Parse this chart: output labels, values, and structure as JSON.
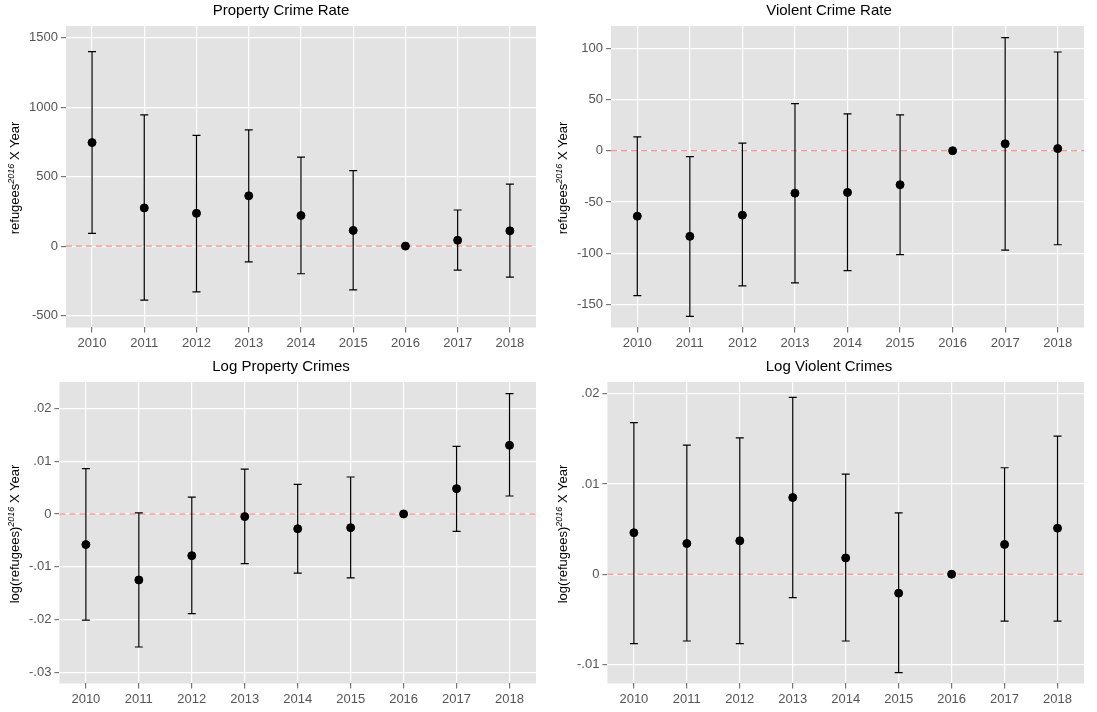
{
  "chart_data": [
    {
      "type": "scatter",
      "title": "Property Crime Rate",
      "ylabel": "refugees$^{2016}$ X Year",
      "categories": [
        "2010",
        "2011",
        "2012",
        "2013",
        "2014",
        "2015",
        "2016",
        "2017",
        "2018"
      ],
      "color": "#000000",
      "marker": "circle",
      "grid": true,
      "values": [
        745,
        275,
        236,
        362,
        220,
        113,
        0,
        42,
        110
      ],
      "errors": [
        [
          92,
          1400
        ],
        [
          -388,
          944
        ],
        [
          -330,
          797
        ],
        [
          -113,
          836
        ],
        [
          -199,
          640
        ],
        [
          -315,
          543
        ],
        null,
        [
          -173,
          260
        ],
        [
          -223,
          446
        ]
      ],
      "ylim": [
        -585,
        1584
      ],
      "yticks": [
        -500,
        0,
        500,
        1000,
        1500
      ],
      "ref_lines": [
        {
          "axis": "y",
          "value": 0,
          "color": "#f8766d",
          "line_style": "dashed"
        }
      ]
    },
    {
      "type": "scatter",
      "title": "Violent Crime Rate",
      "ylabel": "refugees$^{2016}$ X Year",
      "categories": [
        "2010",
        "2011",
        "2012",
        "2013",
        "2014",
        "2015",
        "2016",
        "2017",
        "2018"
      ],
      "color": "#000000",
      "marker": "circle",
      "grid": true,
      "values": [
        -63.9,
        -83.6,
        -62.9,
        -41.4,
        -40.7,
        -33.2,
        0,
        6.8,
        2.1
      ],
      "errors": [
        [
          -141.4,
          13.6
        ],
        [
          -161.8,
          -5.7
        ],
        [
          -132,
          7.5
        ],
        [
          -129,
          46
        ],
        [
          -117,
          36
        ],
        [
          -101.4,
          35
        ],
        null,
        [
          -97.1,
          110.4
        ],
        [
          -91.8,
          96.4
        ]
      ],
      "ylim": [
        -172.5,
        121.8
      ],
      "yticks": [
        -150,
        -100,
        -50,
        0,
        50,
        100
      ],
      "ref_lines": [
        {
          "axis": "y",
          "value": 0,
          "color": "#f8766d",
          "line_style": "dashed"
        }
      ]
    },
    {
      "type": "scatter",
      "title": "Log Property Crimes",
      "ylabel": "log(refugees)$^{2016}$ X Year",
      "categories": [
        "2010",
        "2011",
        "2012",
        "2013",
        "2014",
        "2015",
        "2016",
        "2017",
        "2018"
      ],
      "color": "#000000",
      "marker": "circle",
      "grid": true,
      "values": [
        -0.0058,
        -0.0125,
        -0.0079,
        -0.0005,
        -0.0028,
        -0.0026,
        0,
        0.0048,
        0.013
      ],
      "errors": [
        [
          -0.0201,
          0.0086
        ],
        [
          -0.0252,
          0.0002
        ],
        [
          -0.0189,
          0.0032
        ],
        [
          -0.0094,
          0.0085
        ],
        [
          -0.0112,
          0.0056
        ],
        [
          -0.0121,
          0.007
        ],
        null,
        [
          -0.0033,
          0.0128
        ],
        [
          0.0034,
          0.0228
        ]
      ],
      "ylim": [
        -0.0321,
        0.025
      ],
      "yticks": [
        {
          "value": -0.03,
          "label": "-.03"
        },
        {
          "value": -0.02,
          "label": "-.02"
        },
        {
          "value": -0.01,
          "label": "-.01"
        },
        0,
        {
          "value": 0.01,
          "label": ".01"
        },
        {
          "value": 0.02,
          "label": ".02"
        }
      ],
      "ref_lines": [
        {
          "axis": "y",
          "value": 0,
          "color": "#f8766d",
          "line_style": "dashed"
        }
      ]
    },
    {
      "type": "scatter",
      "title": "Log Violent Crimes",
      "ylabel": "log(refugees)$^{2016}$ X Year",
      "categories": [
        "2010",
        "2011",
        "2012",
        "2013",
        "2014",
        "2015",
        "2016",
        "2017",
        "2018"
      ],
      "color": "#000000",
      "marker": "circle",
      "grid": true,
      "values": [
        0.0046,
        0.0034,
        0.0037,
        0.0085,
        0.0018,
        -0.0021,
        0,
        0.0033,
        0.0051
      ],
      "errors": [
        [
          -0.0077,
          0.0168
        ],
        [
          -0.0074,
          0.0143
        ],
        [
          -0.0077,
          0.0151
        ],
        [
          -0.0026,
          0.0196
        ],
        [
          -0.0074,
          0.0111
        ],
        [
          -0.0109,
          0.0068
        ],
        null,
        [
          -0.0052,
          0.0118
        ],
        [
          -0.0052,
          0.0153
        ]
      ],
      "ylim": [
        -0.0121,
        0.0213
      ],
      "yticks": [
        {
          "value": -0.01,
          "label": "-.01"
        },
        0,
        {
          "value": 0.01,
          "label": ".01"
        },
        {
          "value": 0.02,
          "label": ".02"
        }
      ],
      "ref_lines": [
        {
          "axis": "y",
          "value": 0,
          "color": "#f8766d",
          "line_style": "dashed"
        }
      ]
    }
  ]
}
